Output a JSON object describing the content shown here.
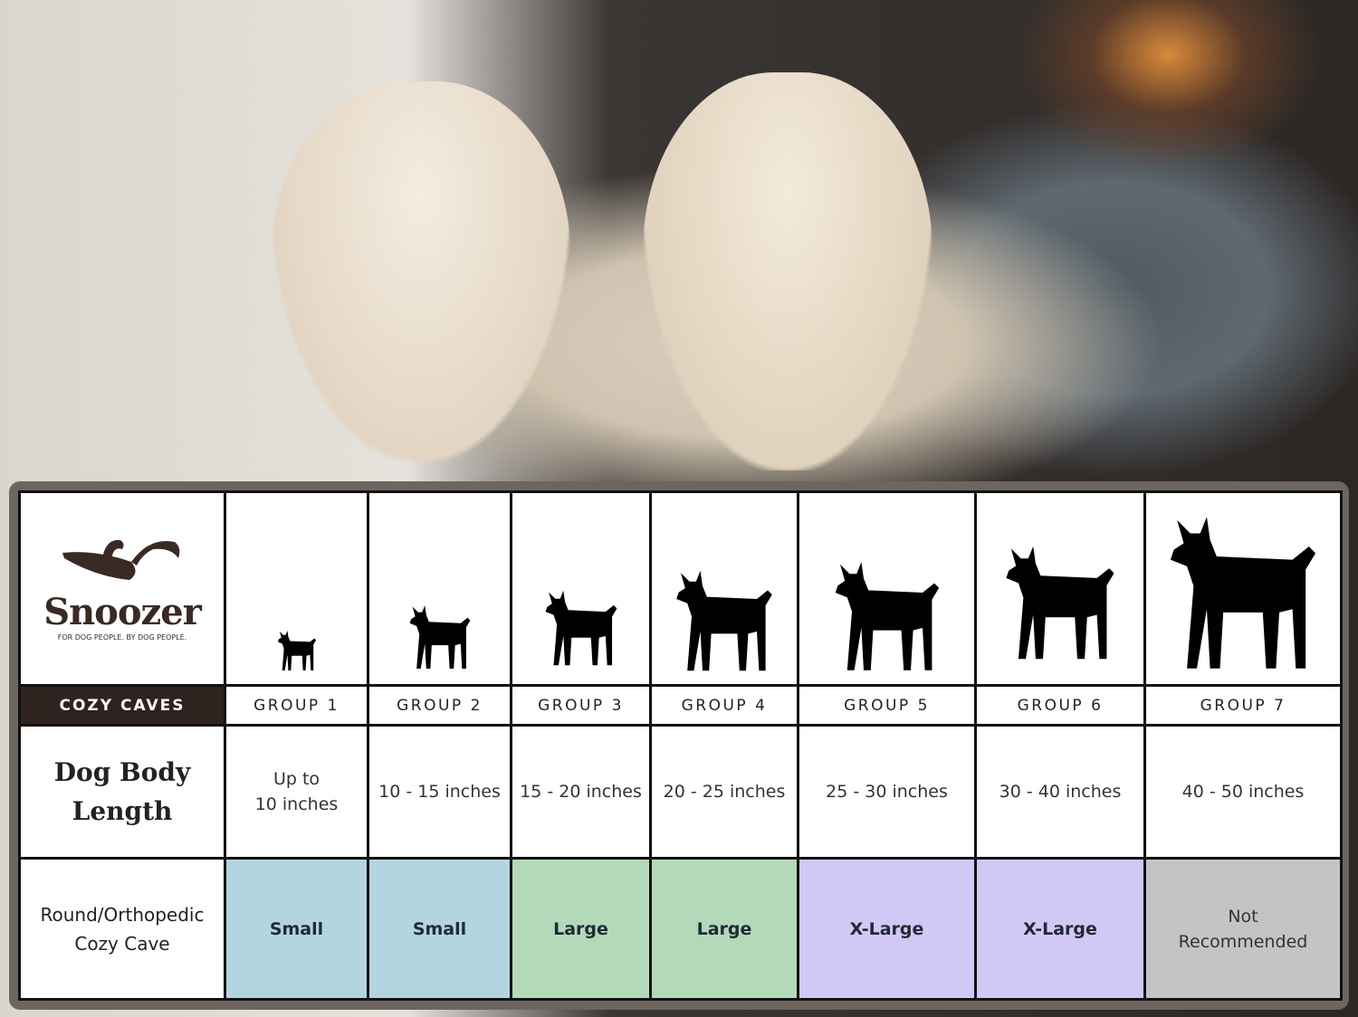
{
  "brand": {
    "name": "Snoozer",
    "tagline": "FOR DOG PEOPLE. BY DOG PEOPLE.",
    "color": "#3a2a24"
  },
  "table": {
    "header_label": "COZY CAVES",
    "row_labels": {
      "length_line1": "Dog Body",
      "length_line2": "Length",
      "product_line1": "Round/Orthopedic",
      "product_line2": "Cozy Cave"
    },
    "groups": [
      {
        "name": "GROUP 1",
        "length": "Up to",
        "length2": "10 inches",
        "size": "Small",
        "color": "#b3d5e0",
        "icon": "chihuahua-silhouette-icon"
      },
      {
        "name": "GROUP 2",
        "length": "10 - 15 inches",
        "size": "Small",
        "color": "#b3d5e0",
        "icon": "pomeranian-silhouette-icon"
      },
      {
        "name": "GROUP 3",
        "length": "15 - 20 inches",
        "size": "Large",
        "color": "#b3dab8",
        "icon": "boston-terrier-silhouette-icon"
      },
      {
        "name": "GROUP 4",
        "length": "20 - 25 inches",
        "size": "Large",
        "color": "#b3dab8",
        "icon": "shiba-silhouette-icon"
      },
      {
        "name": "GROUP 5",
        "length": "25 - 30 inches",
        "size": "X-Large",
        "color": "#d2c8f5",
        "icon": "golden-retriever-silhouette-icon"
      },
      {
        "name": "GROUP 6",
        "length": "30 - 40 inches",
        "size": "X-Large",
        "color": "#d2c8f5",
        "icon": "doberman-silhouette-icon"
      },
      {
        "name": "GROUP 7",
        "length": "40 - 50 inches",
        "size": "Not",
        "size2": "Recommended",
        "color": "#c4c4c4",
        "icon": "great-dane-silhouette-icon"
      }
    ]
  }
}
